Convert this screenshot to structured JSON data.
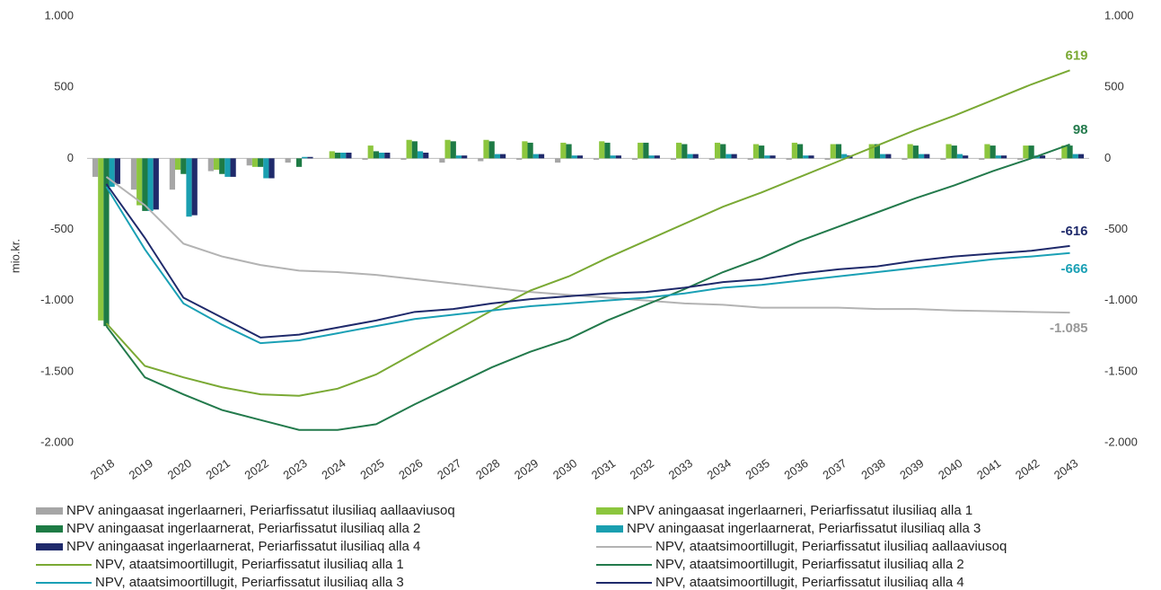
{
  "chart_data": {
    "type": "bar",
    "ylabel": "mio.kr.",
    "categories": [
      "2018",
      "2019",
      "2020",
      "2021",
      "2022",
      "2023",
      "2024",
      "2025",
      "2026",
      "2027",
      "2028",
      "2029",
      "2030",
      "2031",
      "2032",
      "2033",
      "2034",
      "2035",
      "2036",
      "2037",
      "2038",
      "2039",
      "2040",
      "2041",
      "2042",
      "2043"
    ],
    "ylim": [
      -2000,
      1000
    ],
    "yticks": [
      {
        "value": 1000,
        "label": "1.000"
      },
      500,
      0,
      -500,
      {
        "value": -1000,
        "label": "-1.000"
      },
      {
        "value": -1500,
        "label": "-1.500"
      },
      {
        "value": -2000,
        "label": "-2.000"
      }
    ],
    "y2lim": [
      -2000,
      1000
    ],
    "y2ticks": [
      {
        "value": 1000,
        "label": "1.000"
      },
      500,
      0,
      -500,
      {
        "value": -1000,
        "label": "-1.000"
      },
      {
        "value": -1500,
        "label": "-1.500"
      },
      {
        "value": -2000,
        "label": "-2.000"
      }
    ],
    "series": [
      {
        "name": "NPV aningaasat ingerlaarneri, Periarfissatut ilusiliaq aallaaviusoq",
        "type": "bar",
        "color": "#a6a6a6",
        "values": [
          -130,
          -220,
          -220,
          -90,
          -50,
          -30,
          0,
          -10,
          -10,
          -30,
          -20,
          -10,
          -30,
          -10,
          -10,
          -10,
          -10,
          -10,
          -10,
          -10,
          0,
          -10,
          -10,
          -10,
          -10,
          -10
        ]
      },
      {
        "name": "NPV aningaasat ingerlaarneri, Periarfissatut ilusiliaq alla 1",
        "type": "bar",
        "color": "#8cc63e",
        "values": [
          -1140,
          -330,
          -80,
          -80,
          -60,
          0,
          50,
          90,
          130,
          130,
          130,
          120,
          110,
          120,
          110,
          110,
          110,
          100,
          110,
          100,
          100,
          100,
          100,
          100,
          90,
          90
        ]
      },
      {
        "name": "NPV aningaasat ingerlaarnerat, Periarfissatut ilusiliaq alla 2",
        "type": "bar",
        "color": "#1e7b45",
        "values": [
          -1180,
          -370,
          -110,
          -110,
          -60,
          -60,
          40,
          50,
          120,
          120,
          120,
          110,
          100,
          110,
          110,
          100,
          100,
          90,
          100,
          100,
          100,
          90,
          90,
          90,
          90,
          90
        ]
      },
      {
        "name": "NPV aningaasat ingerlaarnerat, Periarfissatut ilusiliaq alla 3",
        "type": "bar",
        "color": "#1a9fb0",
        "values": [
          -200,
          -370,
          -410,
          -130,
          -140,
          10,
          40,
          40,
          50,
          20,
          30,
          30,
          20,
          20,
          20,
          30,
          30,
          20,
          20,
          30,
          30,
          30,
          30,
          20,
          20,
          30
        ]
      },
      {
        "name": "NPV aningaasat ingerlaarnerat, Periarfissatut ilusiliaq alla 4",
        "type": "bar",
        "color": "#1f2a6b",
        "values": [
          -180,
          -360,
          -400,
          -130,
          -140,
          10,
          40,
          40,
          40,
          20,
          30,
          30,
          20,
          20,
          20,
          30,
          30,
          20,
          20,
          20,
          30,
          30,
          20,
          20,
          20,
          30
        ]
      },
      {
        "name": "NPV, ataatsimoortillugit, Periarfissatut ilusiliaq aallaaviusoq",
        "type": "line",
        "color": "#b3b3b3",
        "values": [
          -130,
          -330,
          -600,
          -690,
          -750,
          -790,
          -800,
          -820,
          -850,
          -880,
          -910,
          -940,
          -960,
          -980,
          -1000,
          -1020,
          -1030,
          -1050,
          -1050,
          -1050,
          -1060,
          -1060,
          -1070,
          -1075,
          -1080,
          -1085
        ],
        "value_labels": [
          null,
          null,
          null,
          null,
          null,
          null,
          null,
          null,
          null,
          null,
          null,
          null,
          null,
          null,
          null,
          null,
          null,
          null,
          null,
          null,
          null,
          null,
          null,
          null,
          null,
          "-1.085"
        ]
      },
      {
        "name": "NPV, ataatsimoortillugit, Periarfissatut ilusiliaq alla 1",
        "type": "line",
        "color": "#7aa934",
        "values": [
          -1160,
          -1460,
          -1540,
          -1610,
          -1660,
          -1670,
          -1620,
          -1520,
          -1370,
          -1220,
          -1070,
          -930,
          -830,
          -700,
          -580,
          -460,
          -340,
          -240,
          -130,
          -20,
          90,
          200,
          300,
          410,
          520,
          619
        ]
      },
      {
        "name": "NPV, ataatsimoortillugit, Periarfissatut ilusiliaq alla 2",
        "type": "line",
        "color": "#237a4c",
        "values": [
          -1180,
          -1540,
          -1660,
          -1770,
          -1840,
          -1910,
          -1910,
          -1870,
          -1730,
          -1600,
          -1470,
          -1360,
          -1270,
          -1140,
          -1030,
          -920,
          -800,
          -700,
          -580,
          -480,
          -380,
          -280,
          -190,
          -90,
          0,
          98
        ]
      },
      {
        "name": "NPV, ataatsimoortillugit, Periarfissatut ilusiliaq alla 3",
        "type": "line",
        "color": "#1aa0b5",
        "values": [
          -200,
          -640,
          -1020,
          -1170,
          -1300,
          -1280,
          -1230,
          -1180,
          -1130,
          -1100,
          -1070,
          -1040,
          -1020,
          -1000,
          -980,
          -950,
          -910,
          -890,
          -860,
          -830,
          -800,
          -770,
          -740,
          -710,
          -690,
          -666
        ]
      },
      {
        "name": "NPV, ataatsimoortillugit, Periarfissatut ilusiliaq alla 4",
        "type": "line",
        "color": "#1f2a6b",
        "values": [
          -180,
          -560,
          -980,
          -1120,
          -1260,
          -1240,
          -1190,
          -1140,
          -1080,
          -1060,
          -1020,
          -990,
          -970,
          -950,
          -940,
          -910,
          -870,
          -850,
          -810,
          -780,
          -760,
          -720,
          -690,
          -670,
          -650,
          -616
        ]
      }
    ]
  }
}
